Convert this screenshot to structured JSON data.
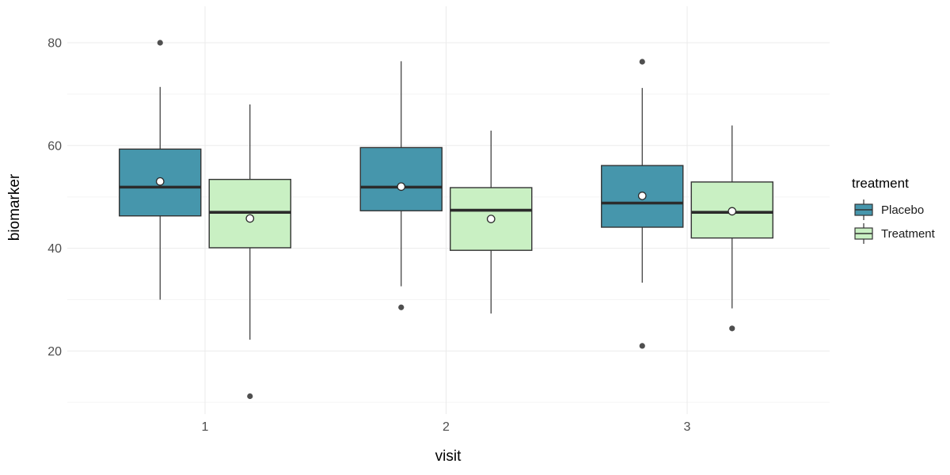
{
  "chart_data": {
    "type": "boxplot",
    "title": "",
    "xlabel": "visit",
    "ylabel": "biomarker",
    "categories": [
      "1",
      "2",
      "3"
    ],
    "y_axis": {
      "ticks": [
        20,
        40,
        60,
        80
      ],
      "minor_ticks": [
        10,
        30,
        50,
        70
      ],
      "range": [
        7,
        87
      ]
    },
    "grid": "on",
    "legend": {
      "title": "treatment",
      "position": "right",
      "entries": [
        {
          "label": "Placebo"
        },
        {
          "label": "Treatment"
        }
      ]
    },
    "series": [
      {
        "name": "Placebo",
        "fill": "#4696AC",
        "boxes": [
          {
            "category": "1",
            "whisker_low": 30.0,
            "q1": 46.3,
            "median": 51.9,
            "q3": 59.3,
            "whisker_high": 71.4,
            "mean": 53.0,
            "outliers": [
              80.0
            ]
          },
          {
            "category": "2",
            "whisker_low": 32.6,
            "q1": 47.3,
            "median": 51.9,
            "q3": 59.6,
            "whisker_high": 76.4,
            "mean": 52.0,
            "outliers": [
              28.5
            ]
          },
          {
            "category": "3",
            "whisker_low": 33.3,
            "q1": 44.1,
            "median": 48.8,
            "q3": 56.1,
            "whisker_high": 71.2,
            "mean": 50.2,
            "outliers": [
              76.3,
              21.0
            ]
          }
        ]
      },
      {
        "name": "Treatment",
        "fill": "#C9F0C3",
        "boxes": [
          {
            "category": "1",
            "whisker_low": 22.2,
            "q1": 40.1,
            "median": 47.0,
            "q3": 53.4,
            "whisker_high": 68.0,
            "mean": 45.8,
            "outliers": [
              11.2
            ]
          },
          {
            "category": "2",
            "whisker_low": 27.3,
            "q1": 39.6,
            "median": 47.4,
            "q3": 51.8,
            "whisker_high": 62.9,
            "mean": 45.7,
            "outliers": []
          },
          {
            "category": "3",
            "whisker_low": 28.3,
            "q1": 42.0,
            "median": 47.0,
            "q3": 52.9,
            "whisker_high": 63.9,
            "mean": 47.2,
            "outliers": [
              24.4
            ]
          }
        ]
      }
    ],
    "colors": {
      "background": "#FFFFFF",
      "grid_major": "#EBEBEB",
      "grid_minor": "#F5F5F5",
      "box_stroke": "#333333",
      "median_stroke": "#2B2B2B",
      "outlier_fill": "#4F4F4F",
      "mean_fill": "#FFFFFF",
      "mean_stroke": "#2B2B2B",
      "tick_text": "#4D4D4D",
      "title_text": "#000000"
    }
  }
}
